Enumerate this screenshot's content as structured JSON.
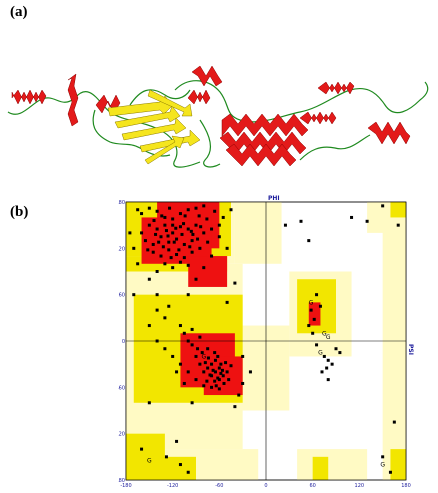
{
  "panels": {
    "a": "(a)",
    "b": "(b)"
  },
  "chart_data": {
    "type": "scatter",
    "xlabel": "PHI",
    "ylabel": "PSI",
    "xlim": [
      -180,
      180
    ],
    "ylim": [
      -180,
      180
    ],
    "x_ticks": [
      "-180",
      "-120",
      "-60",
      "0",
      "60",
      "120",
      "180"
    ],
    "y_ticks": [
      "180",
      "120",
      "60",
      "0",
      "-60",
      "-120",
      "-180"
    ],
    "region_colors": {
      "most_favoured": "#ee1111",
      "additional_allowed": "#f2e600",
      "generously_allowed": "#fffac4",
      "disallowed": "#ffffff"
    },
    "glycine_marker": "G",
    "points": [
      [
        -165,
        170
      ],
      [
        -160,
        165
      ],
      [
        -150,
        172
      ],
      [
        -140,
        168
      ],
      [
        -130,
        160
      ],
      [
        -120,
        158
      ],
      [
        -110,
        165
      ],
      [
        -100,
        170
      ],
      [
        -90,
        172
      ],
      [
        -80,
        175
      ],
      [
        -150,
        150
      ],
      [
        -140,
        145
      ],
      [
        -130,
        150
      ],
      [
        -120,
        140
      ],
      [
        -110,
        148
      ],
      [
        -100,
        145
      ],
      [
        -90,
        150
      ],
      [
        -80,
        140
      ],
      [
        -70,
        145
      ],
      [
        -60,
        150
      ],
      [
        -155,
        130
      ],
      [
        -145,
        125
      ],
      [
        -135,
        135
      ],
      [
        -125,
        128
      ],
      [
        -115,
        132
      ],
      [
        -105,
        125
      ],
      [
        -95,
        130
      ],
      [
        -85,
        120
      ],
      [
        -75,
        128
      ],
      [
        -145,
        115
      ],
      [
        -135,
        110
      ],
      [
        -125,
        118
      ],
      [
        -115,
        112
      ],
      [
        -105,
        108
      ],
      [
        -95,
        115
      ],
      [
        -130,
        100
      ],
      [
        -120,
        95
      ],
      [
        -110,
        102
      ],
      [
        -100,
        98
      ],
      [
        -140,
        90
      ],
      [
        -160,
        140
      ],
      [
        -170,
        120
      ],
      [
        -165,
        100
      ],
      [
        -150,
        80
      ],
      [
        -140,
        60
      ],
      [
        -170,
        60
      ],
      [
        -175,
        140
      ],
      [
        -55,
        160
      ],
      [
        -45,
        170
      ],
      [
        -50,
        120
      ],
      [
        -60,
        135
      ],
      [
        -70,
        110
      ],
      [
        -80,
        95
      ],
      [
        -90,
        80
      ],
      [
        -100,
        60
      ],
      [
        -120,
        150
      ],
      [
        -128,
        143
      ],
      [
        -118,
        128
      ],
      [
        -108,
        138
      ],
      [
        -98,
        122
      ],
      [
        -88,
        132
      ],
      [
        -112,
        118
      ],
      [
        -122,
        108
      ],
      [
        -132,
        122
      ],
      [
        -142,
        138
      ],
      [
        -152,
        118
      ],
      [
        -138,
        128
      ],
      [
        -126,
        136
      ],
      [
        -116,
        146
      ],
      [
        -106,
        152
      ],
      [
        -96,
        142
      ],
      [
        -86,
        162
      ],
      [
        -76,
        158
      ],
      [
        -66,
        168
      ],
      [
        -124,
        172
      ],
      [
        -134,
        162
      ],
      [
        -144,
        156
      ],
      [
        -104,
        162
      ],
      [
        -94,
        138
      ],
      [
        -84,
        148
      ],
      [
        -90,
        -20
      ],
      [
        -85,
        -30
      ],
      [
        -80,
        -40
      ],
      [
        -75,
        -35
      ],
      [
        -70,
        -45
      ],
      [
        -65,
        -40
      ],
      [
        -60,
        -50
      ],
      [
        -55,
        -45
      ],
      [
        -70,
        -30
      ],
      [
        -65,
        -25
      ],
      [
        -60,
        -35
      ],
      [
        -58,
        -42
      ],
      [
        -62,
        -48
      ],
      [
        -68,
        -38
      ],
      [
        -72,
        -44
      ],
      [
        -66,
        -52
      ],
      [
        -56,
        -38
      ],
      [
        -52,
        -28
      ],
      [
        -74,
        -22
      ],
      [
        -78,
        -28
      ],
      [
        -82,
        -15
      ],
      [
        -88,
        -10
      ],
      [
        -95,
        -5
      ],
      [
        -100,
        0
      ],
      [
        -105,
        10
      ],
      [
        -110,
        20
      ],
      [
        -95,
        15
      ],
      [
        -85,
        5
      ],
      [
        -75,
        -10
      ],
      [
        -64,
        -58
      ],
      [
        -60,
        -62
      ],
      [
        -54,
        -55
      ],
      [
        -48,
        -50
      ],
      [
        -50,
        -40
      ],
      [
        -45,
        -32
      ],
      [
        -58,
        -30
      ],
      [
        -62,
        -20
      ],
      [
        -66,
        -15
      ],
      [
        -70,
        -60
      ],
      [
        -76,
        -52
      ],
      [
        -80,
        -58
      ],
      [
        -90,
        -50
      ],
      [
        -100,
        -40
      ],
      [
        -110,
        -30
      ],
      [
        -120,
        -20
      ],
      [
        -115,
        -40
      ],
      [
        -105,
        -55
      ],
      [
        -130,
        -10
      ],
      [
        -140,
        0
      ],
      [
        -150,
        20
      ],
      [
        -140,
        40
      ],
      [
        -130,
        30
      ],
      [
        -125,
        45
      ],
      [
        -30,
        -55
      ],
      [
        -35,
        -70
      ],
      [
        -40,
        -85
      ],
      [
        -150,
        -80
      ],
      [
        -160,
        -140
      ],
      [
        -110,
        -160
      ],
      [
        -100,
        -170
      ],
      [
        -50,
        50
      ],
      [
        -40,
        75
      ],
      [
        -30,
        -20
      ],
      [
        -20,
        -40
      ],
      [
        -95,
        -80
      ],
      [
        -115,
        -130
      ],
      [
        -128,
        -150
      ],
      [
        25,
        150
      ],
      [
        45,
        155
      ],
      [
        55,
        130
      ],
      [
        65,
        60
      ],
      [
        70,
        45
      ],
      [
        58,
        40
      ],
      [
        62,
        28
      ],
      [
        55,
        20
      ],
      [
        60,
        10
      ],
      [
        65,
        -5
      ],
      [
        75,
        -20
      ],
      [
        80,
        -25
      ],
      [
        85,
        -30
      ],
      [
        78,
        -35
      ],
      [
        72,
        -40
      ],
      [
        80,
        -50
      ],
      [
        90,
        -10
      ],
      [
        95,
        -15
      ],
      [
        110,
        160
      ],
      [
        130,
        155
      ],
      [
        150,
        175
      ],
      [
        170,
        150
      ],
      [
        165,
        -105
      ],
      [
        150,
        -150
      ],
      [
        160,
        -170
      ]
    ],
    "glycine_points": [
      [
        -150,
        -155
      ],
      [
        -80,
        -20
      ],
      [
        75,
        10
      ],
      [
        80,
        5
      ],
      [
        70,
        -15
      ],
      [
        58,
        50
      ],
      [
        150,
        -160
      ]
    ]
  }
}
